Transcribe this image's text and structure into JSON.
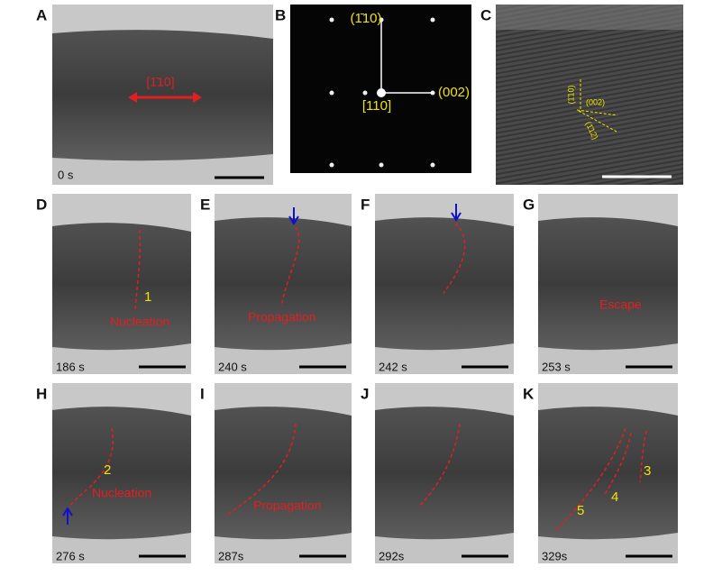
{
  "panels": [
    {
      "label": "A",
      "annotations": [
        "[1̄10]"
      ],
      "time": "0 s"
    },
    {
      "label": "B",
      "annotations": [
        "(1̄10)",
        "(002)",
        "[110]"
      ]
    },
    {
      "label": "C",
      "annotations": [
        "(1̄10)",
        "(002)",
        "(1̄12)"
      ]
    },
    {
      "label": "D",
      "annotations": [
        "1",
        "Nucleation"
      ],
      "time": "186 s"
    },
    {
      "label": "E",
      "annotations": [
        "Propagation"
      ],
      "time": "240 s"
    },
    {
      "label": "F",
      "time": "242 s"
    },
    {
      "label": "G",
      "annotations": [
        "Escape"
      ],
      "time": "253 s"
    },
    {
      "label": "H",
      "annotations": [
        "2",
        "Nucleation"
      ],
      "time": "276 s"
    },
    {
      "label": "I",
      "annotations": [
        "Propagation"
      ],
      "time": "287s"
    },
    {
      "label": "J",
      "time": "292s"
    },
    {
      "label": "K",
      "annotations": [
        "5",
        "4",
        "3"
      ],
      "time": "329s"
    }
  ]
}
